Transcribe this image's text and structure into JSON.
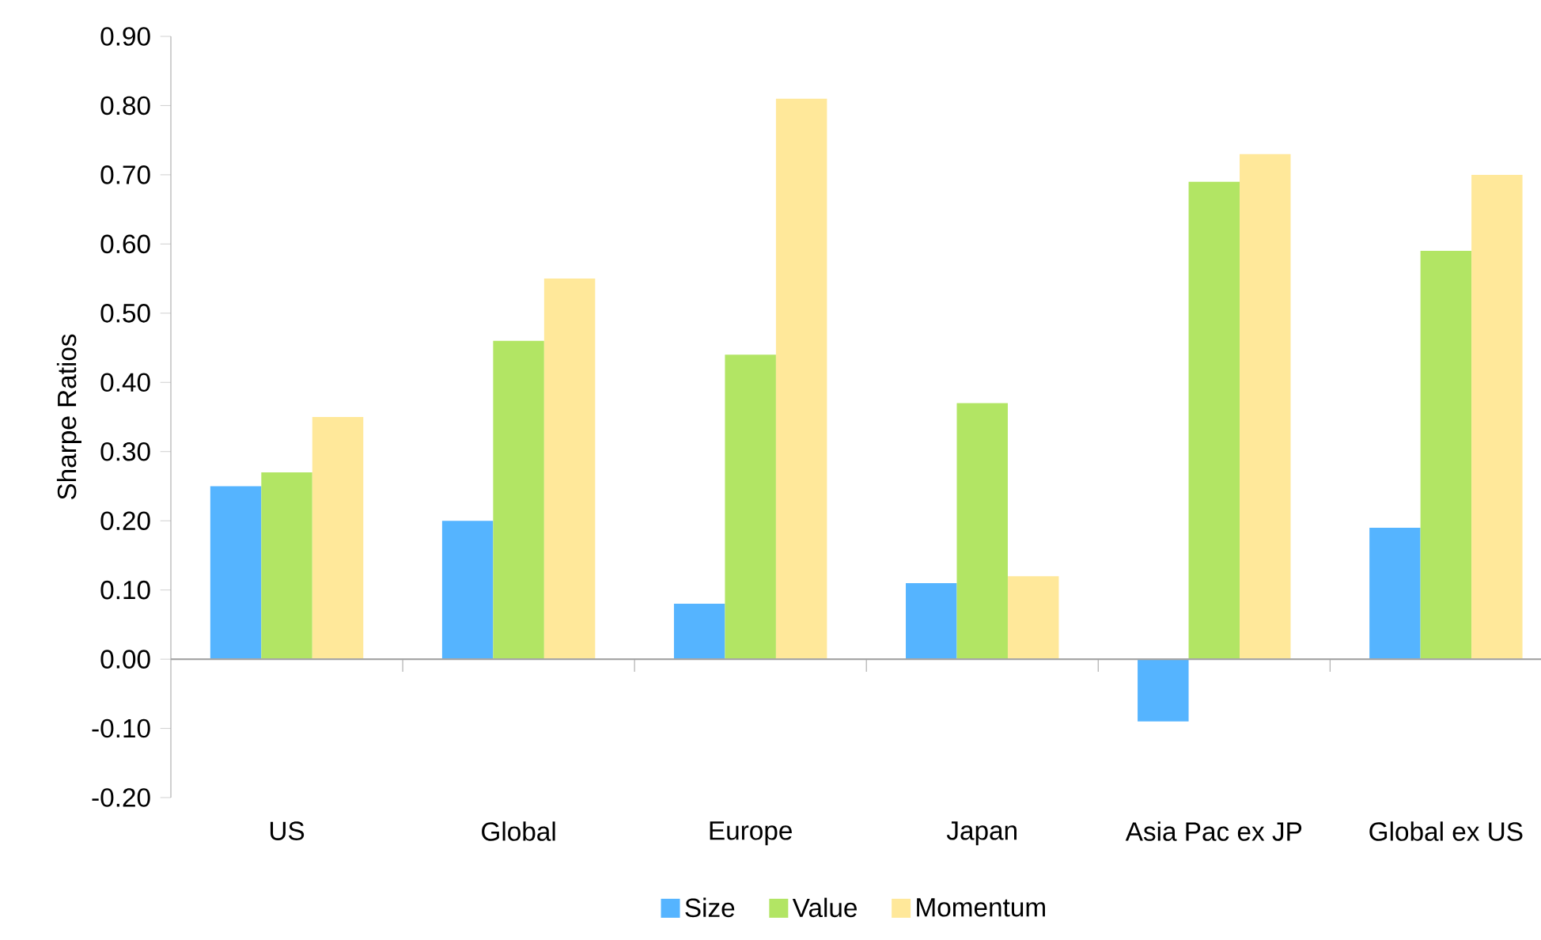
{
  "chart_data": {
    "type": "bar",
    "ylabel": "Sharpe Ratios",
    "categories": [
      "US",
      "Global",
      "Europe",
      "Japan",
      "Asia Pac ex JP",
      "Global ex US"
    ],
    "series": [
      {
        "name": "Size",
        "color": "#55b4ff",
        "values": [
          0.25,
          0.2,
          0.08,
          0.11,
          -0.09,
          0.19
        ]
      },
      {
        "name": "Value",
        "color": "#b2e564",
        "values": [
          0.27,
          0.46,
          0.44,
          0.37,
          0.69,
          0.59
        ]
      },
      {
        "name": "Momentum",
        "color": "#ffe89a",
        "values": [
          0.35,
          0.55,
          0.81,
          0.12,
          0.73,
          0.7
        ]
      }
    ],
    "ylim": [
      -0.2,
      0.9
    ],
    "yticks": [
      {
        "value": -0.2,
        "label": "-0.20"
      },
      {
        "value": -0.1,
        "label": "-0.10"
      },
      {
        "value": 0,
        "label": "0.00"
      },
      {
        "value": 0.1,
        "label": "0.10"
      },
      {
        "value": 0.2,
        "label": "0.20"
      },
      {
        "value": 0.3,
        "label": "0.30"
      },
      {
        "value": 0.4,
        "label": "0.40"
      },
      {
        "value": 0.5,
        "label": "0.50"
      },
      {
        "value": 0.6,
        "label": "0.60"
      },
      {
        "value": 0.7,
        "label": "0.70"
      },
      {
        "value": 0.8,
        "label": "0.80"
      },
      {
        "value": 0.9,
        "label": "0.90"
      }
    ],
    "legend": "bottom"
  }
}
